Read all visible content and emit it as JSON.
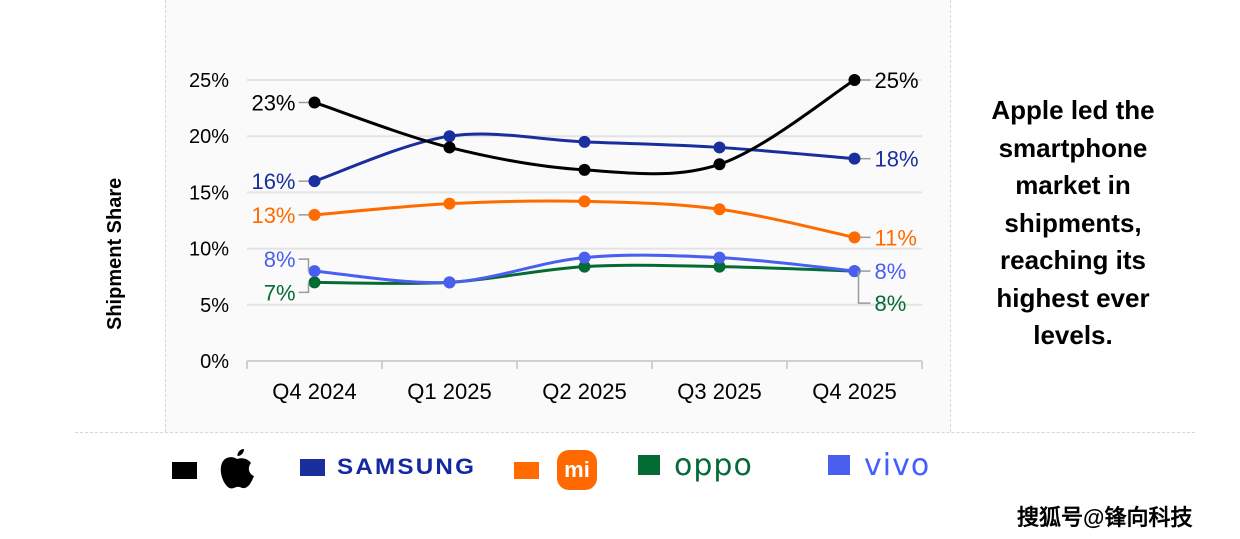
{
  "chart_data": {
    "type": "line",
    "title": "",
    "xlabel": "",
    "ylabel": "Shipment Share",
    "categories": [
      "Q4 2024",
      "Q1 2025",
      "Q2 2025",
      "Q3 2025",
      "Q4 2025"
    ],
    "ylim": [
      0,
      25
    ],
    "yticks": [
      0,
      5,
      10,
      15,
      20,
      25
    ],
    "ytick_labels": [
      "0%",
      "5%",
      "10%",
      "15%",
      "20%",
      "25%"
    ],
    "grid": true,
    "legend_position": "bottom",
    "series": [
      {
        "name": "Apple",
        "color": "#000000",
        "values": [
          23,
          19,
          17,
          17.5,
          25
        ],
        "start_label": "23%",
        "end_label": "25%"
      },
      {
        "name": "Samsung",
        "color": "#1a2e9e",
        "values": [
          16,
          20,
          19.5,
          19,
          18
        ],
        "start_label": "16%",
        "end_label": "18%"
      },
      {
        "name": "Xiaomi",
        "color": "#ff6b00",
        "values": [
          13,
          14,
          14.2,
          13.5,
          11
        ],
        "start_label": "13%",
        "end_label": "11%"
      },
      {
        "name": "OPPO",
        "color": "#056b35",
        "values": [
          7,
          7,
          8.4,
          8.4,
          8
        ],
        "start_label": "7%",
        "end_label": "8%"
      },
      {
        "name": "vivo",
        "color": "#4a5ef0",
        "values": [
          8,
          7,
          9.2,
          9.2,
          8
        ],
        "start_label": "8%",
        "end_label": "8%"
      }
    ]
  },
  "takeaway": "Apple led the smartphone market in shipments, reaching its highest ever levels.",
  "legend": {
    "samsung_text": "SAMSUNG",
    "mi_text": "mi",
    "oppo_text": "oppo",
    "vivo_text": "vivo"
  },
  "watermark": "搜狐号@锋向科技"
}
